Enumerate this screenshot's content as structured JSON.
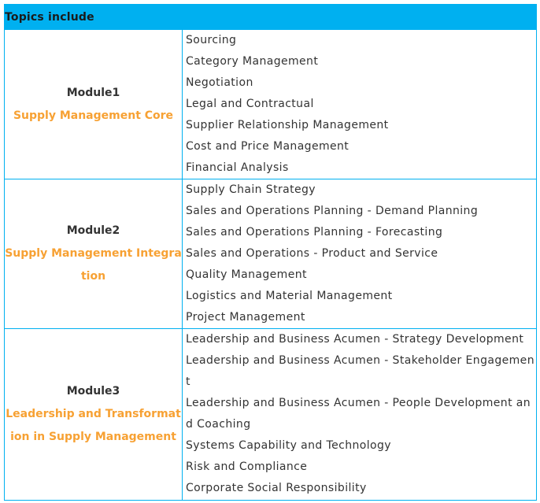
{
  "header": {
    "title": "Topics include"
  },
  "modules": [
    {
      "label": "Module1",
      "title": "Supply Management Core",
      "topics": [
        "Sourcing",
        "Category Management",
        "Negotiation",
        "Legal and Contractual",
        "Supplier Relationship Management",
        "Cost and Price Management",
        "Financial Analysis"
      ]
    },
    {
      "label": "Module2",
      "title": "Supply Management Integration",
      "topics": [
        "Supply Chain Strategy",
        "Sales and Operations Planning - Demand Planning",
        "Sales and Operations Planning - Forecasting",
        "Sales and Operations - Product and Service",
        "Quality Management",
        "Logistics and Material Management",
        "Project Management"
      ]
    },
    {
      "label": "Module3",
      "title": "Leadership and Transformation in Supply Management",
      "topics": [
        "Leadership and Business Acumen - Strategy Development",
        "Leadership and Business Acumen - Stakeholder Engagement",
        "Leadership and Business Acumen - People Development and Coaching",
        "Systems Capability and Technology",
        "Risk and Compliance",
        "Corporate Social Responsibility"
      ]
    }
  ],
  "colors": {
    "header_bg": "#00b0f0",
    "border": "#00b0f0",
    "module_title": "#f7a133",
    "text": "#333333"
  }
}
